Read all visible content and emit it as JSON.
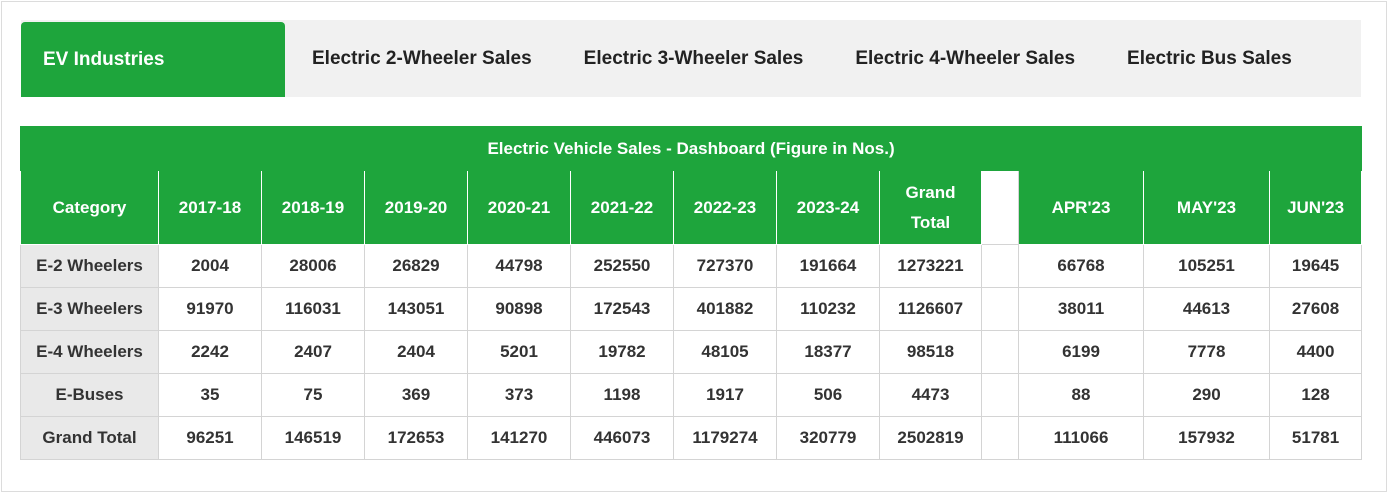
{
  "tabs": [
    {
      "label": "EV Industries"
    },
    {
      "label": "Electric 2-Wheeler Sales"
    },
    {
      "label": "Electric 3-Wheeler Sales"
    },
    {
      "label": "Electric 4-Wheeler Sales"
    },
    {
      "label": "Electric Bus Sales"
    }
  ],
  "colors": {
    "accent": "#1ea53c",
    "category_bg": "#e9e9e9"
  },
  "table": {
    "title": "Electric Vehicle Sales - Dashboard (Figure in Nos.)",
    "headers": [
      "Category",
      "2017-18",
      "2018-19",
      "2019-20",
      "2020-21",
      "2021-22",
      "2022-23",
      "2023-24",
      "Grand Total",
      "",
      "APR'23",
      "MAY'23",
      "JUN'23"
    ],
    "rows": [
      [
        "E-2 Wheelers",
        "2004",
        "28006",
        "26829",
        "44798",
        "252550",
        "727370",
        "191664",
        "1273221",
        "",
        "66768",
        "105251",
        "19645"
      ],
      [
        "E-3 Wheelers",
        "91970",
        "116031",
        "143051",
        "90898",
        "172543",
        "401882",
        "110232",
        "1126607",
        "",
        "38011",
        "44613",
        "27608"
      ],
      [
        "E-4 Wheelers",
        "2242",
        "2407",
        "2404",
        "5201",
        "19782",
        "48105",
        "18377",
        "98518",
        "",
        "6199",
        "7778",
        "4400"
      ],
      [
        "E-Buses",
        "35",
        "75",
        "369",
        "373",
        "1198",
        "1917",
        "506",
        "4473",
        "",
        "88",
        "290",
        "128"
      ],
      [
        "Grand Total",
        "96251",
        "146519",
        "172653",
        "141270",
        "446073",
        "1179274",
        "320779",
        "2502819",
        "",
        "111066",
        "157932",
        "51781"
      ]
    ]
  }
}
